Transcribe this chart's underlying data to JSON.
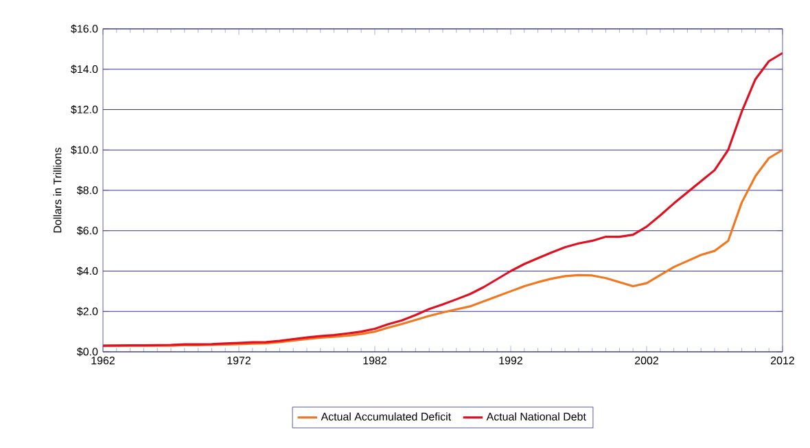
{
  "chart_data": {
    "type": "line",
    "ylabel": "Dollars in Trillions",
    "x": [
      1962,
      1963,
      1964,
      1965,
      1966,
      1967,
      1968,
      1969,
      1970,
      1971,
      1972,
      1973,
      1974,
      1975,
      1976,
      1977,
      1978,
      1979,
      1980,
      1981,
      1982,
      1983,
      1984,
      1985,
      1986,
      1987,
      1988,
      1989,
      1990,
      1991,
      1992,
      1993,
      1994,
      1995,
      1996,
      1997,
      1998,
      1999,
      2000,
      2001,
      2002,
      2003,
      2004,
      2005,
      2006,
      2007,
      2008,
      2009,
      2010,
      2011,
      2012
    ],
    "series": [
      {
        "name": "Actual Accumulated Deficit",
        "color": "#f07820",
        "values": [
          0.3,
          0.3,
          0.3,
          0.3,
          0.3,
          0.3,
          0.33,
          0.33,
          0.34,
          0.36,
          0.38,
          0.4,
          0.42,
          0.48,
          0.56,
          0.63,
          0.7,
          0.74,
          0.8,
          0.88,
          1.0,
          1.2,
          1.38,
          1.58,
          1.78,
          1.95,
          2.1,
          2.25,
          2.5,
          2.75,
          3.0,
          3.25,
          3.45,
          3.62,
          3.75,
          3.8,
          3.78,
          3.65,
          3.45,
          3.25,
          3.4,
          3.8,
          4.2,
          4.5,
          4.8,
          5.0,
          5.5,
          7.4,
          8.7,
          9.6,
          10.0
        ]
      },
      {
        "name": "Actual National Debt",
        "color": "#e01020",
        "values": [
          0.3,
          0.31,
          0.32,
          0.32,
          0.33,
          0.34,
          0.37,
          0.37,
          0.38,
          0.41,
          0.44,
          0.47,
          0.48,
          0.54,
          0.63,
          0.71,
          0.78,
          0.83,
          0.91,
          1.0,
          1.14,
          1.37,
          1.56,
          1.82,
          2.12,
          2.35,
          2.6,
          2.86,
          3.2,
          3.6,
          4.0,
          4.35,
          4.64,
          4.92,
          5.18,
          5.37,
          5.5,
          5.7,
          5.7,
          5.8,
          6.2,
          6.76,
          7.35,
          7.9,
          8.45,
          9.0,
          10.0,
          11.9,
          13.5,
          14.4,
          14.8
        ]
      }
    ],
    "xlim": [
      1962,
      2012
    ],
    "xticks": [
      1962,
      1972,
      1982,
      1992,
      2002,
      2012
    ],
    "ylim": [
      0,
      16
    ],
    "yticks": [
      {
        "value": 0,
        "label": "$0.0"
      },
      {
        "value": 2,
        "label": "$2.0"
      },
      {
        "value": 4,
        "label": "$4.0"
      },
      {
        "value": 6,
        "label": "$6.0"
      },
      {
        "value": 8,
        "label": "$8.0"
      },
      {
        "value": 10,
        "label": "$10.0"
      },
      {
        "value": 12,
        "label": "$12.0"
      },
      {
        "value": 14,
        "label": "$14.0"
      },
      {
        "value": 16,
        "label": "$16.0"
      }
    ],
    "grid": "y",
    "legend": "bottom",
    "line_style": "solid"
  }
}
